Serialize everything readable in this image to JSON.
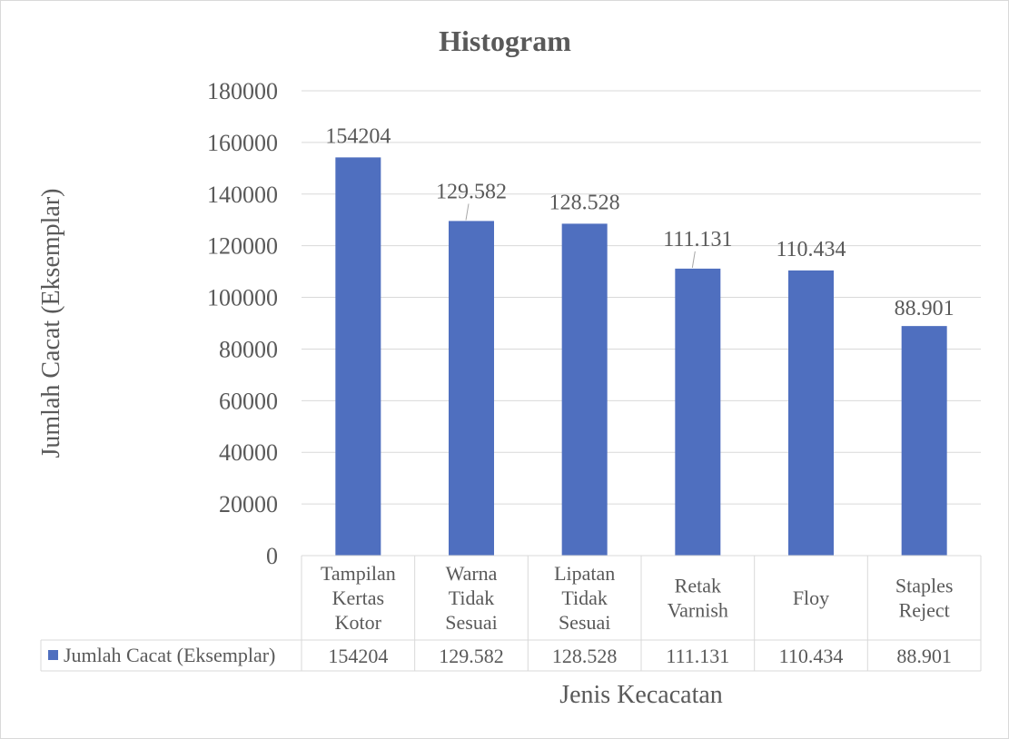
{
  "chart_data": {
    "type": "bar",
    "title": "Histogram",
    "xlabel": "Jenis Kecacatan",
    "ylabel": "Jumlah Cacat (Eksemplar)",
    "ylim": [
      0,
      180000
    ],
    "yticks": [
      "0",
      "20000",
      "40000",
      "60000",
      "80000",
      "100000",
      "120000",
      "140000",
      "160000",
      "180000"
    ],
    "ytick_values": [
      0,
      20000,
      40000,
      60000,
      80000,
      100000,
      120000,
      140000,
      160000,
      180000
    ],
    "grid": true,
    "categories": [
      [
        "Tampilan",
        "Kertas",
        "Kotor"
      ],
      [
        "Warna",
        "Tidak",
        "Sesuai"
      ],
      [
        "Lipatan",
        "Tidak",
        "Sesuai"
      ],
      [
        "Retak",
        "Varnish"
      ],
      [
        "Floy"
      ],
      [
        "Staples",
        "Reject"
      ]
    ],
    "series": [
      {
        "name": "Jumlah Cacat (Eksemplar)",
        "values": [
          154204,
          129582,
          128528,
          111131,
          110434,
          88901
        ],
        "labels": [
          "154204",
          "129.582",
          "128.528",
          "111.131",
          "110.434",
          "88.901"
        ]
      }
    ],
    "data_table": true,
    "colors": {
      "bar": "#4f6fbf",
      "grid": "#d9d9d9",
      "text": "#595959"
    }
  }
}
